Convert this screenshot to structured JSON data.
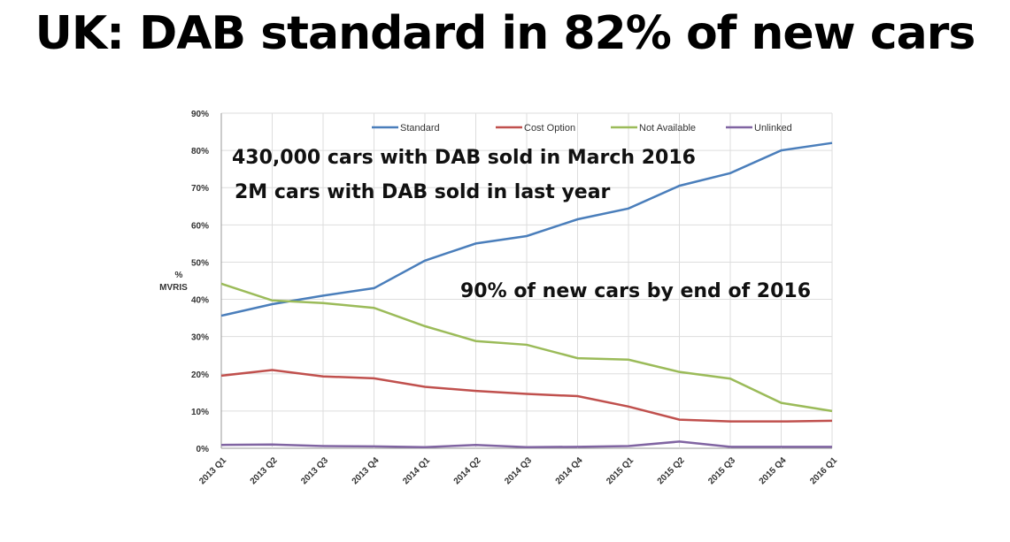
{
  "chart_data": {
    "type": "line",
    "title": "UK: DAB standard in 82% of new cars",
    "xlabel": "",
    "ylabel": "% MVRIS",
    "ylabel_lines": [
      "%",
      "MVRIS"
    ],
    "ylim": [
      0,
      90
    ],
    "yticks": [
      "0%",
      "10%",
      "20%",
      "30%",
      "40%",
      "50%",
      "60%",
      "70%",
      "80%",
      "90%"
    ],
    "grid": true,
    "legend_position": "top",
    "categories": [
      "2013 Q1",
      "2013 Q2",
      "2013 Q3",
      "2013 Q4",
      "2014 Q1",
      "2014 Q2",
      "2014 Q3",
      "2014 Q4",
      "2015 Q1",
      "2015 Q2",
      "2015 Q3",
      "2015 Q4",
      "2016 Q1"
    ],
    "series": [
      {
        "name": "Standard",
        "color": "#4a7ebb",
        "values": [
          35.6,
          38.7,
          41,
          43,
          50.4,
          55,
          57,
          61.5,
          64.4,
          70.5,
          73.9,
          80,
          82
        ]
      },
      {
        "name": "Cost Option",
        "color": "#c0504d",
        "values": [
          19.5,
          21,
          19.3,
          18.8,
          16.5,
          15.4,
          14.6,
          14,
          11.2,
          7.7,
          7.2,
          7.2,
          7.4
        ]
      },
      {
        "name": "Not Available",
        "color": "#9bbb59",
        "values": [
          44.2,
          39.7,
          39,
          37.7,
          32.8,
          28.8,
          27.8,
          24.2,
          23.8,
          20.5,
          18.7,
          12.2,
          10
        ]
      },
      {
        "name": "Unlinked",
        "color": "#8064a2",
        "values": [
          0.9,
          1,
          0.6,
          0.5,
          0.3,
          0.9,
          0.3,
          0.4,
          0.6,
          1.8,
          0.4,
          0.4,
          0.4
        ]
      }
    ],
    "annotations": [
      "430,000 cars with DAB sold in March 2016",
      "2M cars with DAB sold in last year",
      "90% of new cars by end of 2016"
    ]
  }
}
